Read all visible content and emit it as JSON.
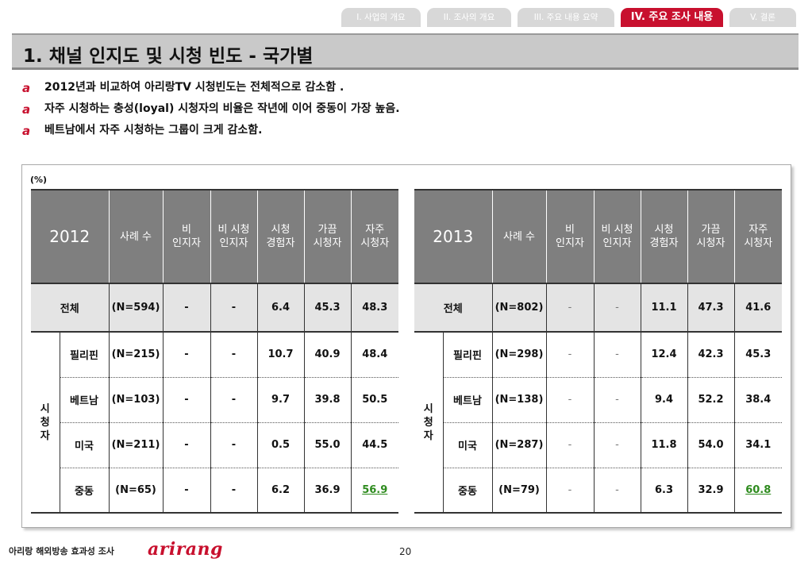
{
  "nav": {
    "tabs": [
      {
        "label": "I. 사업의 개요",
        "active": false
      },
      {
        "label": "II. 조사의 개요",
        "active": false
      },
      {
        "label": "III. 주요 내용 요약",
        "active": false
      },
      {
        "label": "IV. 주요 조사 내용",
        "active": true
      },
      {
        "label": "V. 결론",
        "active": false
      }
    ]
  },
  "title": "1. 채널 인지도 및 시청 빈도 - 국가별",
  "bullets": [
    "2012년과 비교하여 아리랑TV 시청빈도는 전체적으로 감소함 .",
    "자주 시청하는 충성(loyal) 시청자의 비율은 작년에 이어 중동이 가장 높음.",
    "베트남에서 자주 시청하는 그룹이 크게 감소함."
  ],
  "bullet_icon": "a",
  "unit": "(%)",
  "headers": [
    "사례 수",
    "비\n인지자",
    "비 시청\n인지자",
    "시청\n경험자",
    "가끔\n시청자",
    "자주\n시청자"
  ],
  "side_label": "시\n청\n자",
  "tables": [
    {
      "year": "2012",
      "total": {
        "label": "전체",
        "n": "(N=594)",
        "values": [
          "-",
          "-",
          "6.4",
          "45.3",
          "48.3"
        ]
      },
      "rows": [
        {
          "label": "필리핀",
          "n": "(N=215)",
          "values": [
            "-",
            "-",
            "10.7",
            "40.9",
            "48.4"
          ]
        },
        {
          "label": "베트남",
          "n": "(N=103)",
          "values": [
            "-",
            "-",
            "9.7",
            "39.8",
            "50.5"
          ]
        },
        {
          "label": "미국",
          "n": "(N=211)",
          "values": [
            "-",
            "-",
            "0.5",
            "55.0",
            "44.5"
          ]
        },
        {
          "label": "중동",
          "n": "(N=65)",
          "values": [
            "-",
            "-",
            "6.2",
            "36.9",
            "56.9"
          ]
        }
      ]
    },
    {
      "year": "2013",
      "total": {
        "label": "전체",
        "n": "(N=802)",
        "values": [
          "-",
          "-",
          "11.1",
          "47.3",
          "41.6"
        ]
      },
      "rows": [
        {
          "label": "필리핀",
          "n": "(N=298)",
          "values": [
            "-",
            "-",
            "12.4",
            "42.3",
            "45.3"
          ]
        },
        {
          "label": "베트남",
          "n": "(N=138)",
          "values": [
            "-",
            "-",
            "9.4",
            "52.2",
            "38.4"
          ]
        },
        {
          "label": "미국",
          "n": "(N=287)",
          "values": [
            "-",
            "-",
            "11.8",
            "54.0",
            "34.1"
          ]
        },
        {
          "label": "중동",
          "n": "(N=79)",
          "values": [
            "-",
            "-",
            "6.3",
            "32.9",
            "60.8"
          ]
        }
      ]
    }
  ],
  "highlight_color": "#2e8b1e",
  "accent_color": "#c8102e",
  "footer": {
    "text": "아리랑 해외방송 효과성 조사",
    "logo": "arirang",
    "page": "20"
  }
}
